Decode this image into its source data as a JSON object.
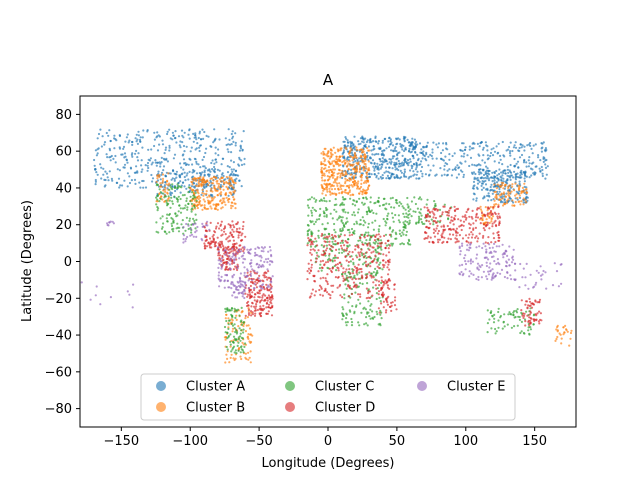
{
  "chart_data": {
    "type": "scatter",
    "title": "A",
    "xlabel": "Longitude (Degrees)",
    "ylabel": "Latitude (Degrees)",
    "xlim": [
      -180,
      180
    ],
    "ylim": [
      -90,
      90
    ],
    "xticks": [
      -150,
      -100,
      -50,
      0,
      50,
      100,
      150
    ],
    "yticks": [
      -80,
      -60,
      -40,
      -20,
      0,
      20,
      40,
      60,
      80
    ],
    "grid": false,
    "legend_position": "lower-center",
    "series": [
      {
        "name": "Cluster A",
        "color": "#1f77b4",
        "regions": [
          {
            "lon": [
              -170,
              -60
            ],
            "lat": [
              40,
              72
            ],
            "n": 420
          },
          {
            "lon": [
              -125,
              -65
            ],
            "lat": [
              35,
              50
            ],
            "n": 150
          },
          {
            "lon": [
              10,
              65
            ],
            "lat": [
              45,
              68
            ],
            "n": 420
          },
          {
            "lon": [
              60,
              160
            ],
            "lat": [
              45,
              65
            ],
            "n": 300
          },
          {
            "lon": [
              105,
              145
            ],
            "lat": [
              32,
              50
            ],
            "n": 220
          }
        ],
        "points": []
      },
      {
        "name": "Cluster B",
        "color": "#ff7f0e",
        "regions": [
          {
            "lon": [
              -100,
              -67
            ],
            "lat": [
              28,
              46
            ],
            "n": 240
          },
          {
            "lon": [
              -125,
              -115
            ],
            "lat": [
              32,
              48
            ],
            "n": 40
          },
          {
            "lon": [
              -5,
              30
            ],
            "lat": [
              36,
              62
            ],
            "n": 380
          },
          {
            "lon": [
              120,
              145
            ],
            "lat": [
              30,
              43
            ],
            "n": 90
          },
          {
            "lon": [
              -75,
              -55
            ],
            "lat": [
              -55,
              -25
            ],
            "n": 90
          },
          {
            "lon": [
              165,
              178
            ],
            "lat": [
              -46,
              -35
            ],
            "n": 25
          },
          {
            "lon": [
              110,
              120
            ],
            "lat": [
              20,
              30
            ],
            "n": 35
          }
        ],
        "points": []
      },
      {
        "name": "Cluster C",
        "color": "#2ca02c",
        "regions": [
          {
            "lon": [
              -125,
              -95
            ],
            "lat": [
              15,
              42
            ],
            "n": 140
          },
          {
            "lon": [
              -15,
              60
            ],
            "lat": [
              8,
              35
            ],
            "n": 320
          },
          {
            "lon": [
              -10,
              40
            ],
            "lat": [
              -5,
              10
            ],
            "n": 90
          },
          {
            "lon": [
              10,
              40
            ],
            "lat": [
              -35,
              -5
            ],
            "n": 120
          },
          {
            "lon": [
              -75,
              -60
            ],
            "lat": [
              -50,
              -25
            ],
            "n": 90
          },
          {
            "lon": [
              115,
              150
            ],
            "lat": [
              -40,
              -25
            ],
            "n": 70
          },
          {
            "lon": [
              55,
              90
            ],
            "lat": [
              20,
              35
            ],
            "n": 60
          }
        ],
        "points": []
      },
      {
        "name": "Cluster D",
        "color": "#d62728",
        "regions": [
          {
            "lon": [
              -90,
              -60
            ],
            "lat": [
              5,
              22
            ],
            "n": 140
          },
          {
            "lon": [
              -80,
              -65
            ],
            "lat": [
              -5,
              10
            ],
            "n": 80
          },
          {
            "lon": [
              -60,
              -40
            ],
            "lat": [
              -30,
              -5
            ],
            "n": 180
          },
          {
            "lon": [
              -15,
              45
            ],
            "lat": [
              -20,
              15
            ],
            "n": 320
          },
          {
            "lon": [
              35,
              50
            ],
            "lat": [
              -28,
              -10
            ],
            "n": 50
          },
          {
            "lon": [
              70,
              125
            ],
            "lat": [
              10,
              30
            ],
            "n": 240
          },
          {
            "lon": [
              140,
              155
            ],
            "lat": [
              -35,
              -20
            ],
            "n": 60
          }
        ],
        "points": []
      },
      {
        "name": "Cluster E",
        "color": "#9467bd",
        "regions": [
          {
            "lon": [
              -80,
              -40
            ],
            "lat": [
              -15,
              8
            ],
            "n": 170
          },
          {
            "lon": [
              -105,
              -85
            ],
            "lat": [
              10,
              22
            ],
            "n": 30
          },
          {
            "lon": [
              95,
              135
            ],
            "lat": [
              -10,
              10
            ],
            "n": 130
          },
          {
            "lon": [
              135,
              170
            ],
            "lat": [
              -15,
              0
            ],
            "n": 35
          },
          {
            "lon": [
              -180,
              -140
            ],
            "lat": [
              -25,
              -10
            ],
            "n": 10
          },
          {
            "lon": [
              -162,
              -155
            ],
            "lat": [
              19,
              22
            ],
            "n": 8
          },
          {
            "lon": [
              -70,
              -60
            ],
            "lat": [
              -20,
              -10
            ],
            "n": 30
          }
        ],
        "points": []
      }
    ]
  }
}
